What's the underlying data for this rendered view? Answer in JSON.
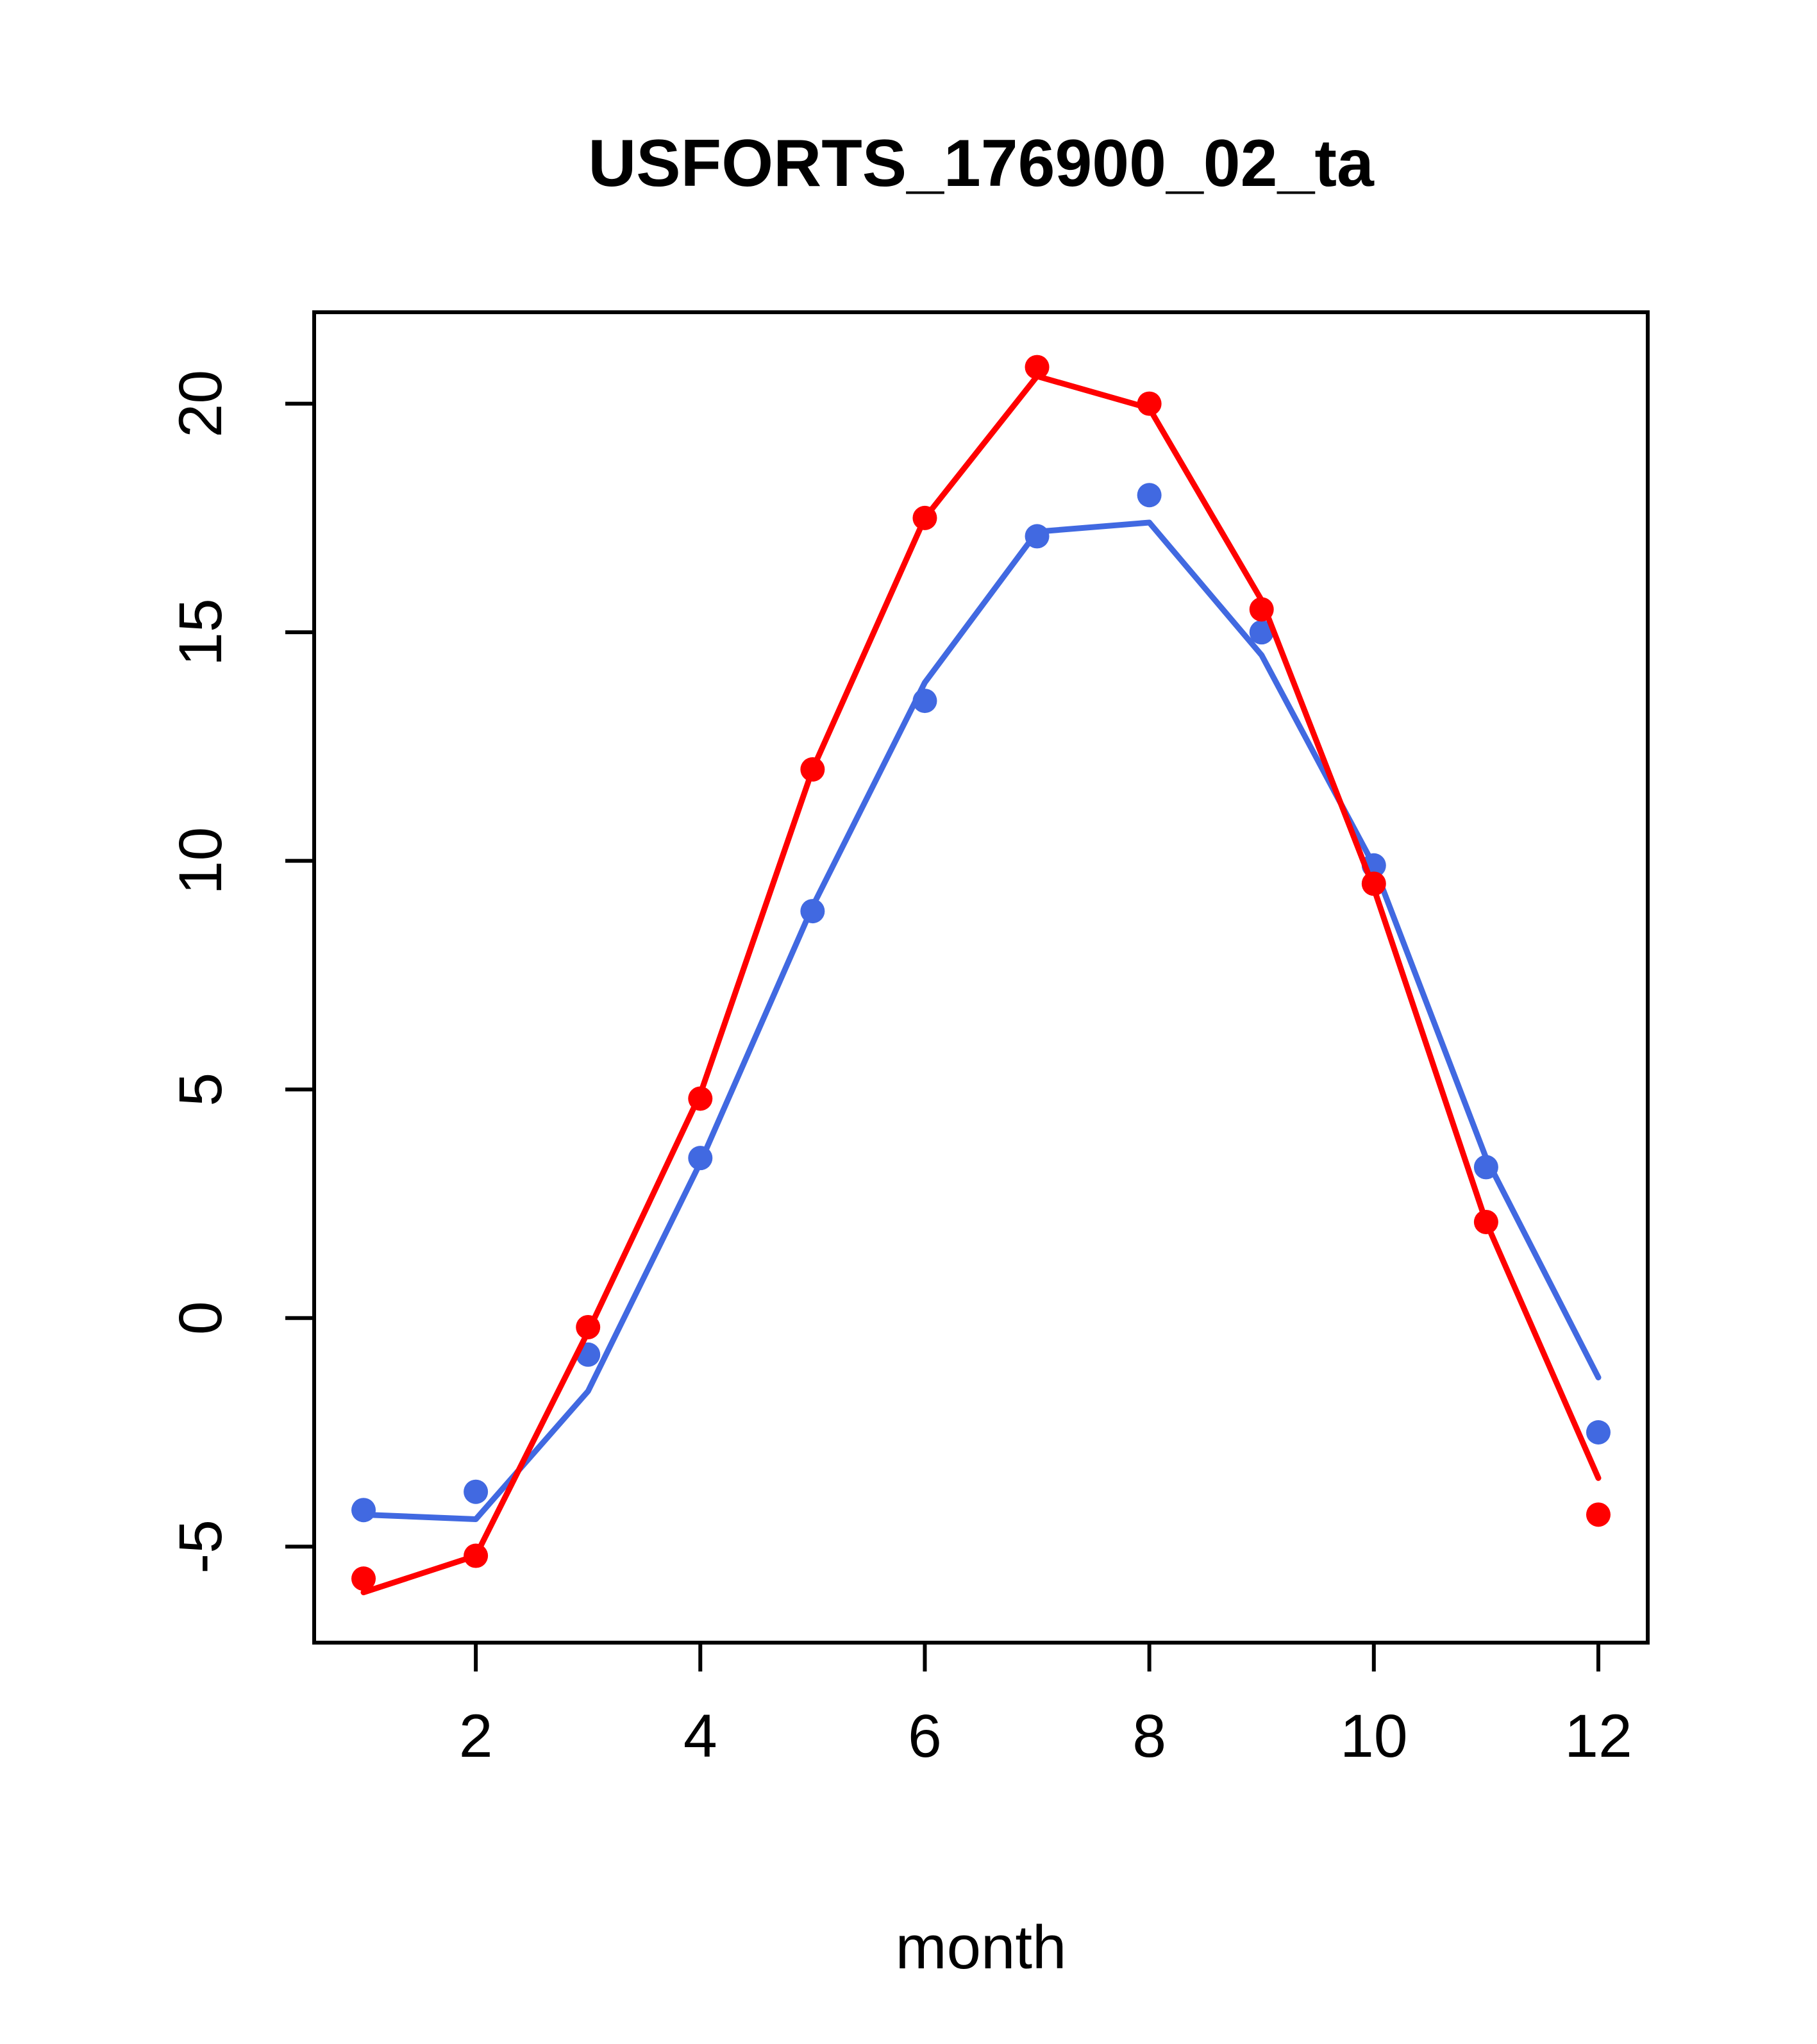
{
  "chart_data": {
    "type": "line",
    "title": "USFORTS_176900_02_ta",
    "xlabel": "month",
    "ylabel": "",
    "x": [
      1,
      2,
      3,
      4,
      5,
      6,
      7,
      8,
      9,
      10,
      11,
      12
    ],
    "x_ticks": [
      2,
      4,
      6,
      8,
      10,
      12
    ],
    "y_ticks": [
      -5,
      0,
      5,
      10,
      15,
      20
    ],
    "xlim": [
      0.56,
      12.44
    ],
    "ylim": [
      -7.1,
      22.0
    ],
    "grid": false,
    "legend": null,
    "colors": {
      "series1": "#FF0000",
      "series2": "#4169E1"
    },
    "series": [
      {
        "name": "blue-series",
        "color": "#4169E1",
        "points": [
          -4.2,
          -3.8,
          -0.8,
          3.5,
          8.9,
          13.5,
          17.1,
          18.0,
          15.0,
          9.9,
          3.3,
          -2.5
        ],
        "line": [
          -4.3,
          -4.4,
          -1.6,
          3.4,
          9.0,
          13.9,
          17.2,
          17.4,
          14.5,
          9.9,
          3.5,
          -1.3
        ]
      },
      {
        "name": "red-series",
        "color": "#FF0000",
        "points": [
          -5.7,
          -5.2,
          -0.2,
          4.8,
          12.0,
          17.5,
          20.8,
          20.0,
          15.5,
          9.5,
          2.1,
          -4.3
        ],
        "line": [
          -6.0,
          -5.2,
          -0.3,
          4.9,
          12.0,
          17.5,
          20.6,
          19.9,
          15.7,
          9.4,
          2.1,
          -3.5
        ]
      }
    ]
  }
}
